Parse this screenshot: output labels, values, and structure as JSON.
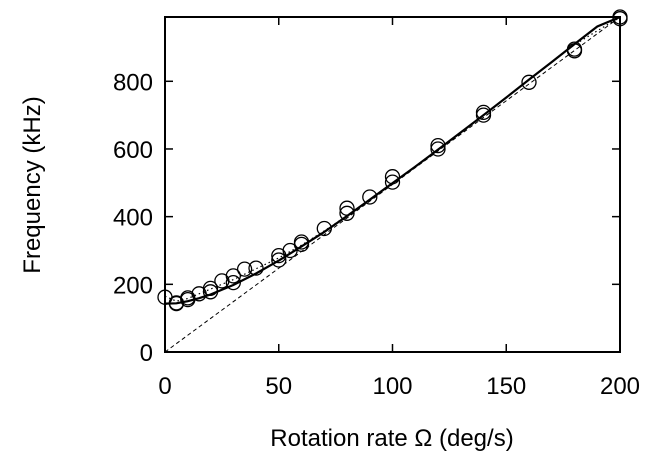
{
  "chart_data": {
    "type": "scatter",
    "title": "",
    "xlabel": "Rotation rate Ω (deg/s)",
    "ylabel": "Frequency (kHz)",
    "xlim": [
      0,
      200
    ],
    "ylim": [
      0,
      990
    ],
    "xticks": [
      0,
      50,
      100,
      150,
      200
    ],
    "xtick_labels": [
      "0",
      "50",
      "100",
      "150",
      "200"
    ],
    "yticks": [
      0,
      200,
      400,
      600,
      800
    ],
    "ytick_labels": [
      "0",
      "200",
      "400",
      "600",
      "800"
    ],
    "grid": false,
    "legend": "none",
    "series": [
      {
        "kind": "scatter",
        "marker": "open-circle",
        "points": [
          [
            0,
            162
          ],
          [
            5,
            145
          ],
          [
            5,
            143
          ],
          [
            10,
            155
          ],
          [
            10,
            160
          ],
          [
            15,
            172
          ],
          [
            20,
            178
          ],
          [
            20,
            188
          ],
          [
            25,
            210
          ],
          [
            30,
            205
          ],
          [
            30,
            225
          ],
          [
            35,
            245
          ],
          [
            40,
            248
          ],
          [
            50,
            272
          ],
          [
            50,
            285
          ],
          [
            55,
            300
          ],
          [
            60,
            318
          ],
          [
            60,
            325
          ],
          [
            70,
            365
          ],
          [
            80,
            410
          ],
          [
            80,
            425
          ],
          [
            90,
            458
          ],
          [
            100,
            502
          ],
          [
            100,
            518
          ],
          [
            120,
            600
          ],
          [
            120,
            610
          ],
          [
            140,
            700
          ],
          [
            140,
            708
          ],
          [
            160,
            797
          ],
          [
            180,
            890
          ],
          [
            180,
            895
          ],
          [
            200,
            985
          ],
          [
            200,
            990
          ]
        ]
      },
      {
        "kind": "solid-line",
        "points": [
          [
            0,
            143
          ],
          [
            5,
            144
          ],
          [
            10,
            150
          ],
          [
            15,
            159
          ],
          [
            20,
            170
          ],
          [
            30,
            198
          ],
          [
            40,
            232
          ],
          [
            50,
            270
          ],
          [
            60,
            312
          ],
          [
            70,
            355
          ],
          [
            80,
            402
          ],
          [
            90,
            450
          ],
          [
            100,
            499
          ],
          [
            110,
            548
          ],
          [
            120,
            598
          ],
          [
            130,
            649
          ],
          [
            140,
            700
          ],
          [
            150,
            752
          ],
          [
            160,
            805
          ],
          [
            170,
            857
          ],
          [
            180,
            910
          ],
          [
            190,
            962
          ],
          [
            200,
            990
          ]
        ]
      },
      {
        "kind": "dashed-line",
        "points": [
          [
            0,
            0
          ],
          [
            200,
            990
          ]
        ]
      },
      {
        "kind": "dotted-line",
        "points": [
          [
            0,
            165
          ],
          [
            5,
            150
          ],
          [
            10,
            158
          ],
          [
            15,
            172
          ],
          [
            20,
            186
          ],
          [
            25,
            200
          ],
          [
            30,
            214
          ],
          [
            35,
            230
          ],
          [
            40,
            246
          ],
          [
            50,
            278
          ],
          [
            60,
            316
          ],
          [
            70,
            358
          ],
          [
            80,
            403
          ],
          [
            90,
            450
          ],
          [
            100,
            498
          ],
          [
            120,
            598
          ],
          [
            140,
            700
          ],
          [
            160,
            804
          ],
          [
            180,
            908
          ],
          [
            200,
            990
          ]
        ]
      }
    ]
  },
  "colors": {
    "axis": "#000000",
    "markers": "#000000",
    "lines": "#000000",
    "background": "#ffffff"
  }
}
